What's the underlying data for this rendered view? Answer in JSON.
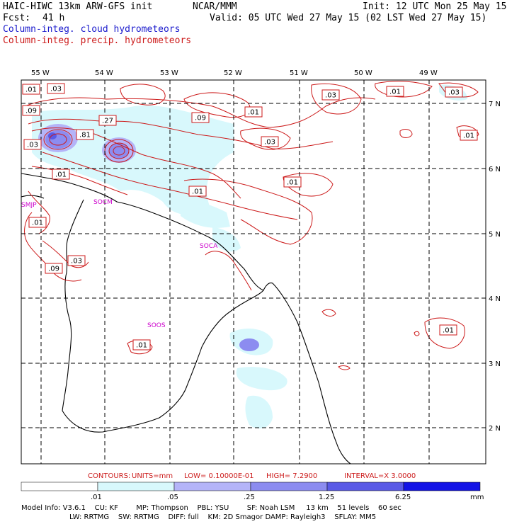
{
  "header": {
    "model": "HAIC-HIWC 13km ARW-GFS init",
    "org": "NCAR/MMM",
    "init": "Init: 12 UTC Mon 25 May 15",
    "fcst_label": "Fcst:",
    "fcst_value": "41 h",
    "valid": "Valid: 05 UTC Wed 27 May 15 (02 LST Wed 27 May 15)",
    "field1": "Column-integ. cloud hydrometeors",
    "field2": "Column-integ. precip. hydrometeors"
  },
  "map": {
    "lon_labels": [
      "55 W",
      "54 W",
      "53 W",
      "52 W",
      "51 W",
      "50 W",
      "49 W"
    ],
    "lat_labels": [
      "7 N",
      "6 N",
      "5 N",
      "4 N",
      "3 N",
      "2 N"
    ],
    "stations": [
      "SMJP",
      "SOCM",
      "SOCA",
      "SOOS"
    ],
    "contour_labels": [
      ".01",
      ".03",
      ".09",
      ".27",
      ".81",
      ".03",
      ".01",
      ".09",
      ".01",
      ".03",
      ".01",
      ".01",
      ".03",
      ".01",
      ".03",
      ".01",
      ".01",
      ".03",
      ".09",
      ".01",
      ".01"
    ]
  },
  "contours_info": {
    "label": "CONTOURS:",
    "units": "UNITS=mm",
    "low": "LOW= 0.10000E-01",
    "high": "HIGH= 7.2900",
    "interval": "INTERVAL=X 3.0000"
  },
  "colorbar": {
    "ticks": [
      ".01",
      ".05",
      ".25",
      "1.25",
      "6.25"
    ],
    "units": "mm",
    "colors": [
      "#ffffff",
      "#d8f8fc",
      "#b4b4f8",
      "#8c8cf0",
      "#5a5ae6",
      "#1414e6"
    ]
  },
  "footer": {
    "line1": "Model Info: V3.6.1    CU: KF        MP: Thompson    PBL: YSU        SF: Noah LSM     13 km    51 levels    60 sec",
    "line2": "LW: RRTMG    SW: RRTMG    DIFF: full    KM: 2D Smagor DAMP: Rayleigh3    SFLAY: MM5"
  }
}
